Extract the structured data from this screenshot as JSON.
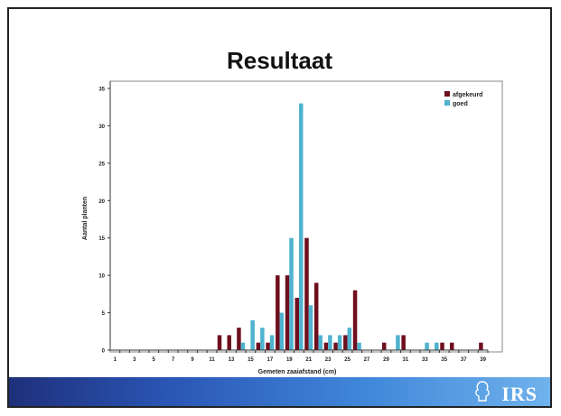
{
  "slide": {
    "title": "Resultaat",
    "logo_text": "IRS"
  },
  "colors": {
    "afgekeurd": "#6e0f1e",
    "goed": "#4fb3cf",
    "axis": "#333333",
    "plot_border": "#888888",
    "footer_dark": "#1e2f7a",
    "footer_light": "#6fb2ec"
  },
  "chart_data": {
    "type": "bar",
    "xlabel": "Gemeten zaaiafstand (cm)",
    "ylabel": "Aantal planten",
    "ylim": [
      0,
      35
    ],
    "yticks": [
      0,
      5,
      10,
      15,
      20,
      25,
      30,
      35
    ],
    "x": [
      1,
      2,
      3,
      4,
      5,
      6,
      7,
      8,
      9,
      10,
      11,
      12,
      13,
      14,
      15,
      16,
      17,
      18,
      19,
      20,
      21,
      22,
      23,
      24,
      25,
      26,
      27,
      28,
      29,
      30,
      31,
      32,
      33,
      34,
      35,
      36,
      37,
      38,
      39
    ],
    "xticks": [
      1,
      3,
      5,
      7,
      9,
      11,
      13,
      15,
      17,
      19,
      21,
      23,
      25,
      27,
      29,
      31,
      33,
      35,
      37,
      39
    ],
    "legend_position": "top-right",
    "grid": false,
    "series": [
      {
        "name": "afgekeurd",
        "values": [
          0,
          0,
          0,
          0,
          0,
          0,
          0,
          0,
          0,
          0,
          0,
          2,
          2,
          3,
          0,
          1,
          1,
          10,
          10,
          7,
          15,
          9,
          1,
          1,
          2,
          8,
          0,
          0,
          1,
          0,
          2,
          0,
          0,
          0,
          1,
          1,
          0,
          0,
          1
        ]
      },
      {
        "name": "goed",
        "values": [
          0,
          0,
          0,
          0,
          0,
          0,
          0,
          0,
          0,
          0,
          0,
          0,
          0,
          1,
          4,
          3,
          2,
          5,
          15,
          33,
          6,
          2,
          2,
          2,
          3,
          1,
          0,
          0,
          0,
          2,
          0,
          0,
          1,
          1,
          0,
          0,
          0,
          0,
          0
        ]
      }
    ]
  }
}
